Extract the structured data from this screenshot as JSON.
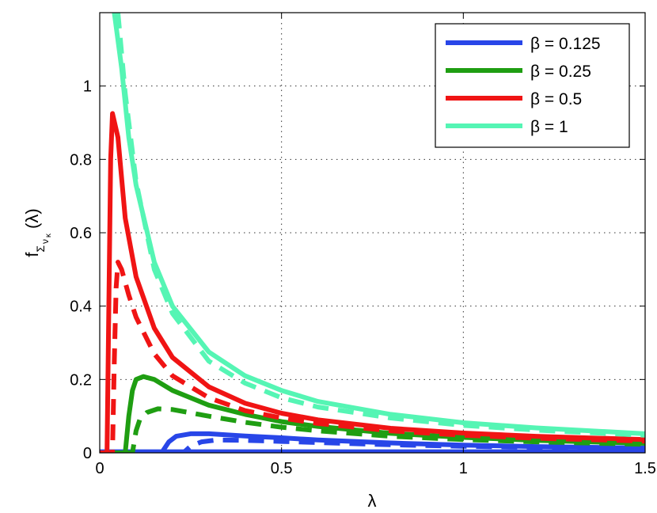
{
  "chart_data": {
    "type": "line",
    "xlabel": "λ",
    "ylabel": {
      "main": "f",
      "sub1": "Σ",
      "sub2": "ν",
      "sub3": "κ",
      "arg": "(λ)"
    },
    "xlim": [
      0,
      1.5
    ],
    "ylim": [
      0,
      1.2
    ],
    "xticks": [
      0,
      0.5,
      1,
      1.5
    ],
    "xtick_labels": [
      "0",
      "0.5",
      "1",
      "1.5"
    ],
    "yticks": [
      0,
      0.2,
      0.4,
      0.6,
      0.8,
      1
    ],
    "ytick_labels": [
      "0",
      "0.2",
      "0.4",
      "0.6",
      "0.8",
      "1"
    ],
    "grid": true,
    "legend_position": "top-right",
    "legend": [
      {
        "label": "β = 0.125",
        "color": "#2846e8"
      },
      {
        "label": "β = 0.25",
        "color": "#1f9e12"
      },
      {
        "label": "β = 0.5",
        "color": "#f01414"
      },
      {
        "label": "β = 1",
        "color": "#55f5b4"
      }
    ],
    "series": [
      {
        "color": "#2846e8",
        "style": "solid",
        "x": [
          0,
          0.17,
          0.19,
          0.21,
          0.25,
          0.3,
          0.4,
          0.5,
          0.6,
          0.8,
          1.0,
          1.2,
          1.5
        ],
        "y": [
          0,
          0,
          0.03,
          0.045,
          0.052,
          0.052,
          0.046,
          0.041,
          0.035,
          0.027,
          0.021,
          0.017,
          0.013
        ]
      },
      {
        "color": "#2846e8",
        "style": "dashed",
        "x": [
          0,
          0.23,
          0.25,
          0.28,
          0.32,
          0.4,
          0.5,
          0.6,
          0.8,
          1.0,
          1.2,
          1.5
        ],
        "y": [
          0,
          0,
          0.018,
          0.03,
          0.035,
          0.034,
          0.031,
          0.028,
          0.022,
          0.018,
          0.015,
          0.012
        ]
      },
      {
        "color": "#2846e8",
        "style": "solid",
        "x": [
          0,
          1.5
        ],
        "y": [
          0.003,
          0.003
        ]
      },
      {
        "color": "#1f9e12",
        "style": "solid",
        "x": [
          0,
          0.07,
          0.08,
          0.09,
          0.1,
          0.12,
          0.15,
          0.2,
          0.3,
          0.4,
          0.5,
          0.6,
          0.8,
          1.0,
          1.2,
          1.5
        ],
        "y": [
          0,
          0,
          0.1,
          0.17,
          0.2,
          0.208,
          0.2,
          0.17,
          0.13,
          0.105,
          0.085,
          0.072,
          0.053,
          0.042,
          0.034,
          0.026
        ]
      },
      {
        "color": "#1f9e12",
        "style": "dashed",
        "x": [
          0,
          0.09,
          0.1,
          0.11,
          0.13,
          0.16,
          0.2,
          0.3,
          0.4,
          0.5,
          0.6,
          0.8,
          1.0,
          1.2,
          1.5
        ],
        "y": [
          0,
          0,
          0.06,
          0.09,
          0.11,
          0.12,
          0.118,
          0.1,
          0.083,
          0.07,
          0.06,
          0.045,
          0.036,
          0.03,
          0.023
        ]
      },
      {
        "color": "#f01414",
        "style": "solid",
        "x": [
          0,
          0.02,
          0.025,
          0.03,
          0.035,
          0.05,
          0.07,
          0.1,
          0.15,
          0.2,
          0.3,
          0.4,
          0.5,
          0.6,
          0.8,
          1.0,
          1.2,
          1.5
        ],
        "y": [
          0,
          0,
          0.4,
          0.8,
          0.925,
          0.86,
          0.64,
          0.48,
          0.34,
          0.26,
          0.18,
          0.135,
          0.108,
          0.09,
          0.067,
          0.054,
          0.045,
          0.036
        ]
      },
      {
        "color": "#f01414",
        "style": "dashed",
        "x": [
          0,
          0.035,
          0.04,
          0.045,
          0.05,
          0.06,
          0.08,
          0.1,
          0.15,
          0.2,
          0.3,
          0.4,
          0.5,
          0.6,
          0.8,
          1.0,
          1.2,
          1.5
        ],
        "y": [
          0,
          0,
          0.25,
          0.45,
          0.52,
          0.5,
          0.43,
          0.37,
          0.27,
          0.21,
          0.15,
          0.115,
          0.095,
          0.08,
          0.06,
          0.048,
          0.04,
          0.032
        ]
      },
      {
        "color": "#55f5b4",
        "style": "solid",
        "x": [
          0.04,
          0.06,
          0.08,
          0.1,
          0.15,
          0.2,
          0.3,
          0.4,
          0.5,
          0.6,
          0.8,
          1.0,
          1.2,
          1.5
        ],
        "y": [
          1.2,
          1.05,
          0.86,
          0.73,
          0.52,
          0.4,
          0.275,
          0.21,
          0.17,
          0.14,
          0.105,
          0.082,
          0.068,
          0.052
        ]
      },
      {
        "color": "#55f5b4",
        "style": "dashed",
        "x": [
          0.05,
          0.07,
          0.1,
          0.15,
          0.2,
          0.3,
          0.4,
          0.5,
          0.6,
          0.8,
          1.0,
          1.2,
          1.5
        ],
        "y": [
          1.2,
          0.98,
          0.74,
          0.5,
          0.38,
          0.25,
          0.19,
          0.15,
          0.125,
          0.095,
          0.075,
          0.062,
          0.048
        ]
      }
    ]
  }
}
